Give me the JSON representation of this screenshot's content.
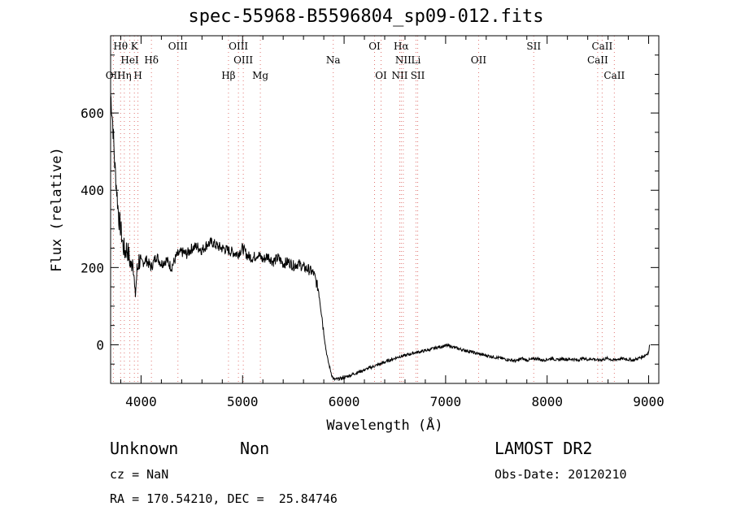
{
  "title": "spec-55968-B5596804_sp09-012.fits",
  "info": {
    "class": "Unknown",
    "subclass": "Non",
    "survey": "LAMOST DR2",
    "cz": "cz = NaN",
    "obs_date": "Obs-Date: 20120210",
    "radec": "RA = 170.54210, DEC =  25.84746"
  },
  "chart_data": {
    "type": "line",
    "title": "spec-55968-B5596804_sp09-012.fits",
    "xlabel": "Wavelength (Å)",
    "ylabel": "Flux (relative)",
    "xlim": [
      3700,
      9100
    ],
    "ylim": [
      -100,
      800
    ],
    "x_ticks": [
      4000,
      5000,
      6000,
      7000,
      8000,
      9000
    ],
    "y_ticks": [
      0,
      200,
      400,
      600
    ],
    "grid": false,
    "series": [
      {
        "x": [
          3700,
          3720,
          3740,
          3760,
          3780,
          3800,
          3820,
          3840,
          3860,
          3880,
          3900,
          3920,
          3940,
          3960,
          3980,
          4000,
          4050,
          4100,
          4150,
          4200,
          4250,
          4300,
          4350,
          4400,
          4450,
          4500,
          4550,
          4600,
          4650,
          4700,
          4750,
          4800,
          4850,
          4900,
          4950,
          5000,
          5050,
          5100,
          5150,
          5200,
          5250,
          5300,
          5350,
          5400,
          5450,
          5500,
          5550,
          5600,
          5650,
          5700,
          5750,
          5780,
          5800,
          5820,
          5840,
          5860,
          5880,
          5900,
          5950,
          6000,
          6050,
          6100,
          6150,
          6200,
          6250,
          6300,
          6350,
          6400,
          6450,
          6500,
          6550,
          6600,
          6650,
          6700,
          6750,
          6800,
          6850,
          6900,
          6950,
          7000,
          7050,
          7100,
          7150,
          7200,
          7250,
          7300,
          7350,
          7400,
          7450,
          7500,
          7550,
          7600,
          7650,
          7700,
          7750,
          7800,
          7850,
          7900,
          7950,
          8000,
          8050,
          8100,
          8150,
          8200,
          8250,
          8300,
          8350,
          8400,
          8450,
          8500,
          8550,
          8600,
          8650,
          8700,
          8750,
          8800,
          8850,
          8900,
          8950,
          9000,
          9010
        ],
        "y": [
          650,
          580,
          470,
          400,
          330,
          300,
          260,
          240,
          250,
          230,
          200,
          230,
          120,
          190,
          220,
          210,
          220,
          200,
          230,
          210,
          220,
          200,
          230,
          240,
          235,
          250,
          255,
          245,
          260,
          265,
          255,
          250,
          245,
          240,
          235,
          250,
          230,
          225,
          235,
          220,
          230,
          215,
          225,
          210,
          215,
          205,
          210,
          200,
          195,
          185,
          140,
          80,
          30,
          -10,
          -40,
          -60,
          -80,
          -90,
          -88,
          -85,
          -80,
          -75,
          -70,
          -65,
          -60,
          -55,
          -50,
          -45,
          -40,
          -35,
          -30,
          -28,
          -24,
          -20,
          -18,
          -15,
          -12,
          -8,
          -5,
          -2,
          -4,
          -8,
          -12,
          -15,
          -18,
          -22,
          -25,
          -28,
          -30,
          -33,
          -35,
          -38,
          -40,
          -42,
          -35,
          -40,
          -38,
          -35,
          -40,
          -38,
          -35,
          -40,
          -36,
          -38,
          -37,
          -40,
          -35,
          -38,
          -36,
          -40,
          -38,
          -35,
          -40,
          -37,
          -36,
          -38,
          -40,
          -35,
          -30,
          -20,
          0
        ]
      }
    ],
    "lines": [
      {
        "label": "Hθ",
        "x": 3798,
        "row": 1
      },
      {
        "label": "K",
        "x": 3934,
        "row": 1
      },
      {
        "label": "OII",
        "x": 3727,
        "row": 3
      },
      {
        "label": "HeI",
        "x": 3889,
        "row": 2
      },
      {
        "label": "Hη",
        "x": 3835,
        "row": 3
      },
      {
        "label": "H",
        "x": 3969,
        "row": 3
      },
      {
        "label": "Hδ",
        "x": 4102,
        "row": 2
      },
      {
        "label": "OIII",
        "x": 4363,
        "row": 1
      },
      {
        "label": "OIII",
        "x": 4959,
        "row": 1
      },
      {
        "label": "OIII",
        "x": 5007,
        "row": 2
      },
      {
        "label": "Hβ",
        "x": 4861,
        "row": 3
      },
      {
        "label": "Mg",
        "x": 5175,
        "row": 3
      },
      {
        "label": "Na",
        "x": 5893,
        "row": 2
      },
      {
        "label": "OI",
        "x": 6300,
        "row": 1
      },
      {
        "label": "OI",
        "x": 6364,
        "row": 3
      },
      {
        "label": "Hα",
        "x": 6563,
        "row": 1
      },
      {
        "label": "NII",
        "x": 6583,
        "row": 2
      },
      {
        "label": "NII",
        "x": 6548,
        "row": 3
      },
      {
        "label": "Li",
        "x": 6708,
        "row": 2
      },
      {
        "label": "SII",
        "x": 6725,
        "row": 3
      },
      {
        "label": "OII",
        "x": 7325,
        "row": 2
      },
      {
        "label": "SII",
        "x": 7868,
        "row": 1
      },
      {
        "label": "CaII",
        "x": 8542,
        "row": 1
      },
      {
        "label": "CaII",
        "x": 8498,
        "row": 2
      },
      {
        "label": "CaII",
        "x": 8662,
        "row": 3
      }
    ]
  }
}
